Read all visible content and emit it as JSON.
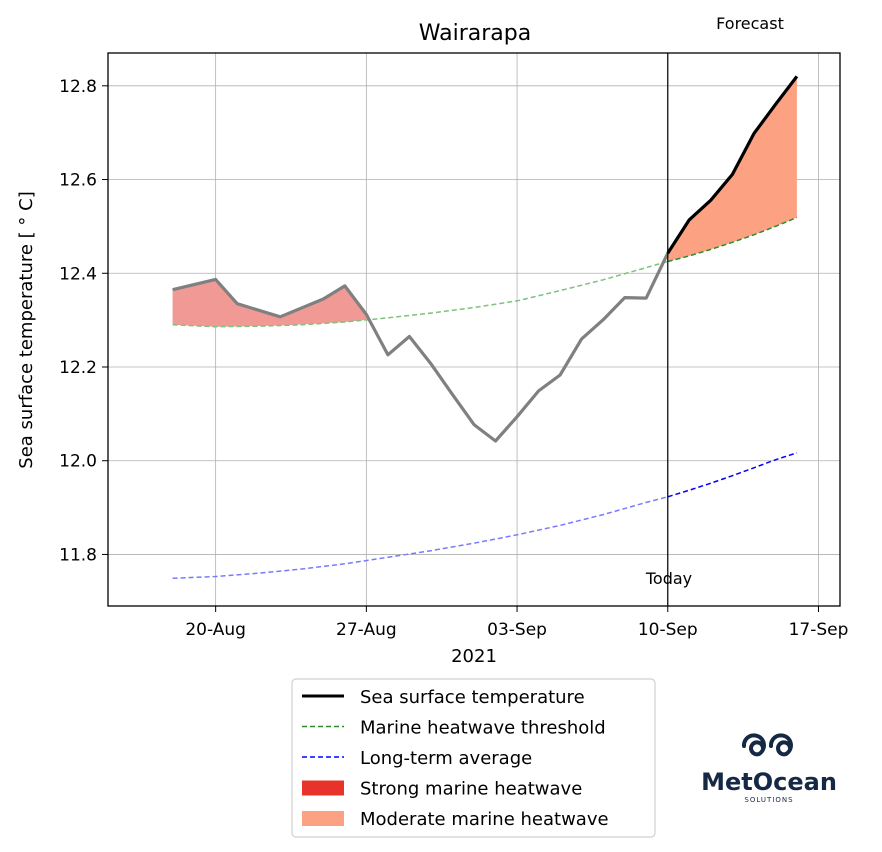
{
  "chart_data": {
    "type": "line",
    "title": "Wairarapa",
    "xlabel": "2021",
    "ylabel": "Sea surface temperature [$^\\circ$C]",
    "ylabel_display": "Sea surface temperature [ ° C]",
    "xlim": [
      "2021-08-15",
      "2021-09-18"
    ],
    "ylim": [
      11.69,
      12.87
    ],
    "x_ticks": [
      {
        "date": "2021-08-20",
        "label": "20-Aug"
      },
      {
        "date": "2021-08-27",
        "label": "27-Aug"
      },
      {
        "date": "2021-09-03",
        "label": "03-Sep"
      },
      {
        "date": "2021-09-10",
        "label": "10-Sep"
      },
      {
        "date": "2021-09-17",
        "label": "17-Sep"
      }
    ],
    "y_ticks": [
      11.8,
      12.0,
      12.2,
      12.4,
      12.6,
      12.8
    ],
    "y_tick_labels": [
      "11.8",
      "12.0",
      "12.2",
      "12.4",
      "12.6",
      "12.8"
    ],
    "grid": true,
    "annotations": {
      "today_label": "Today",
      "forecast_label": "Forecast",
      "today_date": "2021-09-10"
    },
    "series": [
      {
        "name": "Sea surface temperature",
        "color": "#000000",
        "style": "solid",
        "observed_color": "#808080",
        "x": [
          "2021-08-18",
          "2021-08-20",
          "2021-08-21",
          "2021-08-23",
          "2021-08-25",
          "2021-08-26",
          "2021-08-27",
          "2021-08-28",
          "2021-08-29",
          "2021-08-30",
          "2021-08-31",
          "2021-09-01",
          "2021-09-02",
          "2021-09-03",
          "2021-09-04",
          "2021-09-05",
          "2021-09-06",
          "2021-09-07",
          "2021-09-08",
          "2021-09-09",
          "2021-09-10",
          "2021-09-11",
          "2021-09-12",
          "2021-09-13",
          "2021-09-14",
          "2021-09-15",
          "2021-09-16"
        ],
        "values": [
          12.365,
          12.387,
          12.335,
          12.307,
          12.345,
          12.373,
          12.312,
          12.226,
          12.265,
          12.207,
          12.141,
          12.077,
          12.042,
          12.094,
          12.149,
          12.183,
          12.26,
          12.301,
          12.348,
          12.347,
          12.443,
          12.514,
          12.556,
          12.611,
          12.698,
          12.76,
          12.82
        ]
      },
      {
        "name": "Marine heatwave threshold",
        "color": "#2e8b2e",
        "style": "dashed",
        "x": [
          "2021-08-18",
          "2021-08-20",
          "2021-08-22",
          "2021-08-24",
          "2021-08-26",
          "2021-08-28",
          "2021-08-30",
          "2021-09-01",
          "2021-09-03",
          "2021-09-05",
          "2021-09-07",
          "2021-09-09",
          "2021-09-10",
          "2021-09-11",
          "2021-09-12",
          "2021-09-13",
          "2021-09-14",
          "2021-09-15",
          "2021-09-16"
        ],
        "values": [
          12.29,
          12.286,
          12.287,
          12.29,
          12.296,
          12.305,
          12.315,
          12.327,
          12.341,
          12.363,
          12.386,
          12.412,
          12.425,
          12.437,
          12.451,
          12.466,
          12.482,
          12.5,
          12.519
        ]
      },
      {
        "name": "Long-term average",
        "color": "#0000ff",
        "style": "dashed",
        "x": [
          "2021-08-18",
          "2021-08-20",
          "2021-08-22",
          "2021-08-24",
          "2021-08-26",
          "2021-08-28",
          "2021-08-30",
          "2021-09-01",
          "2021-09-03",
          "2021-09-05",
          "2021-09-07",
          "2021-09-09",
          "2021-09-10",
          "2021-09-11",
          "2021-09-12",
          "2021-09-13",
          "2021-09-14",
          "2021-09-15",
          "2021-09-16"
        ],
        "values": [
          11.749,
          11.753,
          11.76,
          11.769,
          11.78,
          11.794,
          11.808,
          11.824,
          11.842,
          11.862,
          11.885,
          11.911,
          11.923,
          11.937,
          11.952,
          11.968,
          11.985,
          12.002,
          12.017
        ]
      }
    ],
    "fills": [
      {
        "name": "Strong marine heatwave",
        "color": "#e8332a",
        "observed_color": "#f19a95",
        "from": "2021-08-18",
        "to": "2021-08-27"
      },
      {
        "name": "Moderate marine heatwave",
        "color": "#fca283",
        "from": "2021-09-10",
        "to": "2021-09-16"
      }
    ],
    "legend": {
      "placement": "below",
      "entries": [
        {
          "label": "Sea surface temperature",
          "kind": "line",
          "color": "#000000",
          "dash": false
        },
        {
          "label": "Marine heatwave threshold",
          "kind": "line",
          "color": "#2e8b2e",
          "dash": true
        },
        {
          "label": "Long-term average",
          "kind": "line",
          "color": "#0000ff",
          "dash": true
        },
        {
          "label": "Strong marine heatwave",
          "kind": "patch",
          "color": "#e8332a"
        },
        {
          "label": "Moderate marine heatwave",
          "kind": "patch",
          "color": "#fca283"
        }
      ]
    }
  },
  "logo": {
    "name": "MetOcean",
    "sub": "SOLUTIONS",
    "color": "#152844"
  }
}
